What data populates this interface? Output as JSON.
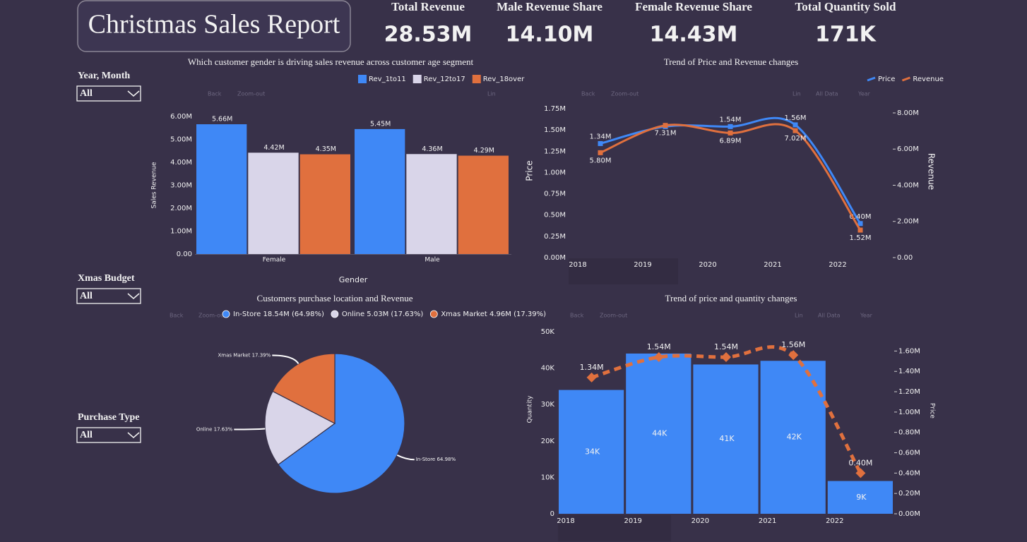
{
  "header": {
    "title": "Christmas Sales Report",
    "kpis": [
      {
        "label": "Total Revenue",
        "value": "28.53M"
      },
      {
        "label": "Male Revenue Share",
        "value": "14.10M"
      },
      {
        "label": "Female Revenue Share",
        "value": "14.43M"
      },
      {
        "label": "Total Quantity Sold",
        "value": "171K"
      }
    ]
  },
  "filters": [
    {
      "label": "Year, Month",
      "value": "All"
    },
    {
      "label": "Xmas Budget",
      "value": "All"
    },
    {
      "label": "Purchase Type",
      "value": "All"
    }
  ],
  "toolbar": {
    "back": "Back",
    "zoom_out": "Zoom-out",
    "scale": "Lin",
    "all_data": "All Data",
    "year": "Year"
  },
  "chart_data": [
    {
      "type": "bar",
      "title": "Which customer gender is driving sales revenue across customer age segment",
      "xlabel": "Gender",
      "ylabel": "Sales Revenue",
      "categories": [
        "Female",
        "Male"
      ],
      "series": [
        {
          "name": "Rev_1to11",
          "color": "#3f88f6",
          "values": [
            5660000,
            5450000
          ],
          "value_labels": [
            "5.66M",
            "5.45M"
          ]
        },
        {
          "name": "Rev_12to17",
          "color": "#d9d5e9",
          "values": [
            4420000,
            4360000
          ],
          "value_labels": [
            "4.42M",
            "4.36M"
          ]
        },
        {
          "name": "Rev_18over",
          "color": "#e0703e",
          "values": [
            4350000,
            4290000
          ],
          "value_labels": [
            "4.35M",
            "4.29M"
          ]
        }
      ],
      "ylim": [
        0,
        6000000
      ],
      "yticks": [
        {
          "value": 0,
          "label": "0.00"
        },
        {
          "value": 1000000,
          "label": "1.00M"
        },
        {
          "value": 2000000,
          "label": "2.00M"
        },
        {
          "value": 3000000,
          "label": "3.00M"
        },
        {
          "value": 4000000,
          "label": "4.00M"
        },
        {
          "value": 5000000,
          "label": "5.00M"
        },
        {
          "value": 6000000,
          "label": "6.00M"
        }
      ],
      "grid": false,
      "legend": "top-right"
    },
    {
      "type": "line",
      "title": "Trend of Price and Revenue changes",
      "ylabel": "Price",
      "y2label": "Revenue",
      "categories": [
        "2018",
        "2019",
        "2020",
        "2021",
        "2022"
      ],
      "series": [
        {
          "name": "Price",
          "color": "#3f88f6",
          "axis": "y",
          "values": [
            1340000,
            1540000,
            1540000,
            1560000,
            400000
          ],
          "value_labels": [
            "1.34M",
            null,
            "1.54M",
            "1.56M",
            "0.40M"
          ]
        },
        {
          "name": "Revenue",
          "color": "#e0703e",
          "axis": "y2",
          "values": [
            5800000,
            7310000,
            6890000,
            7020000,
            1520000
          ],
          "value_labels": [
            "5.80M",
            "7.31M",
            "6.89M",
            "7.02M",
            "1.52M"
          ]
        }
      ],
      "ylim": [
        0,
        1750000
      ],
      "yticks": [
        {
          "value": 0,
          "label": "0.00M"
        },
        {
          "value": 250000,
          "label": "0.25M"
        },
        {
          "value": 500000,
          "label": "0.50M"
        },
        {
          "value": 750000,
          "label": "0.75M"
        },
        {
          "value": 1000000,
          "label": "1.00M"
        },
        {
          "value": 1250000,
          "label": "1.25M"
        },
        {
          "value": 1500000,
          "label": "1.50M"
        },
        {
          "value": 1750000,
          "label": "1.75M"
        }
      ],
      "y2lim": [
        0,
        8234000
      ],
      "y2ticks": [
        {
          "value": 0,
          "label": "0.00"
        },
        {
          "value": 2000000,
          "label": "2.00M"
        },
        {
          "value": 4000000,
          "label": "4.00M"
        },
        {
          "value": 6000000,
          "label": "6.00M"
        },
        {
          "value": 8000000,
          "label": "8.00M"
        }
      ],
      "grid": false,
      "legend": "top-right"
    },
    {
      "type": "pie",
      "title": "Customers purchase location and Revenue",
      "categories": [
        "In-Store",
        "Online",
        "Xmas Market"
      ],
      "values": [
        64.98,
        17.63,
        17.39
      ],
      "value_labels": [
        "In-Store 64.98%",
        "Online 17.63%",
        "Xmas Market 17.39%"
      ],
      "legend_labels": [
        "In-Store 18.54M (64.98%)",
        "Online 5.03M (17.63%)",
        "Xmas Market 4.96M (17.39%)"
      ],
      "colors": [
        "#3f88f6",
        "#d9d5e9",
        "#e0703e"
      ],
      "legend": "top"
    },
    {
      "type": "combo",
      "title": "Trend of price and quantity changes",
      "ylabel": "Quantity",
      "y2label": "Price",
      "categories": [
        "2018",
        "2019",
        "2020",
        "2021",
        "2022"
      ],
      "series": [
        {
          "name": "Quantity",
          "type": "bar",
          "color": "#3f88f6",
          "axis": "y",
          "values": [
            34000,
            44000,
            41000,
            42000,
            9000
          ],
          "value_labels": [
            "34K",
            "44K",
            "41K",
            "42K",
            "9K"
          ]
        },
        {
          "name": "Price",
          "type": "line",
          "color": "#e0703e",
          "axis": "y2",
          "values": [
            1340000,
            1540000,
            1540000,
            1560000,
            400000
          ],
          "value_labels": [
            "1.34M",
            "1.54M",
            "1.54M",
            "1.56M",
            "0.40M"
          ]
        }
      ],
      "ylim": [
        0,
        50000
      ],
      "yticks": [
        0,
        {
          "value": 10000,
          "label": "10K"
        },
        {
          "value": 20000,
          "label": "20K"
        },
        {
          "value": 30000,
          "label": "30K"
        },
        {
          "value": 40000,
          "label": "40K"
        },
        {
          "value": 50000,
          "label": "50K"
        }
      ],
      "y2lim": [
        0,
        1790000
      ],
      "y2ticks": [
        {
          "value": 0,
          "label": "0.00M"
        },
        {
          "value": 200000,
          "label": "0.20M"
        },
        {
          "value": 400000,
          "label": "0.40M"
        },
        {
          "value": 600000,
          "label": "0.60M"
        },
        {
          "value": 800000,
          "label": "0.80M"
        },
        {
          "value": 1000000,
          "label": "1.00M"
        },
        {
          "value": 1200000,
          "label": "1.20M"
        },
        {
          "value": 1400000,
          "label": "1.40M"
        },
        {
          "value": 1600000,
          "label": "1.60M"
        }
      ],
      "grid": false
    }
  ]
}
